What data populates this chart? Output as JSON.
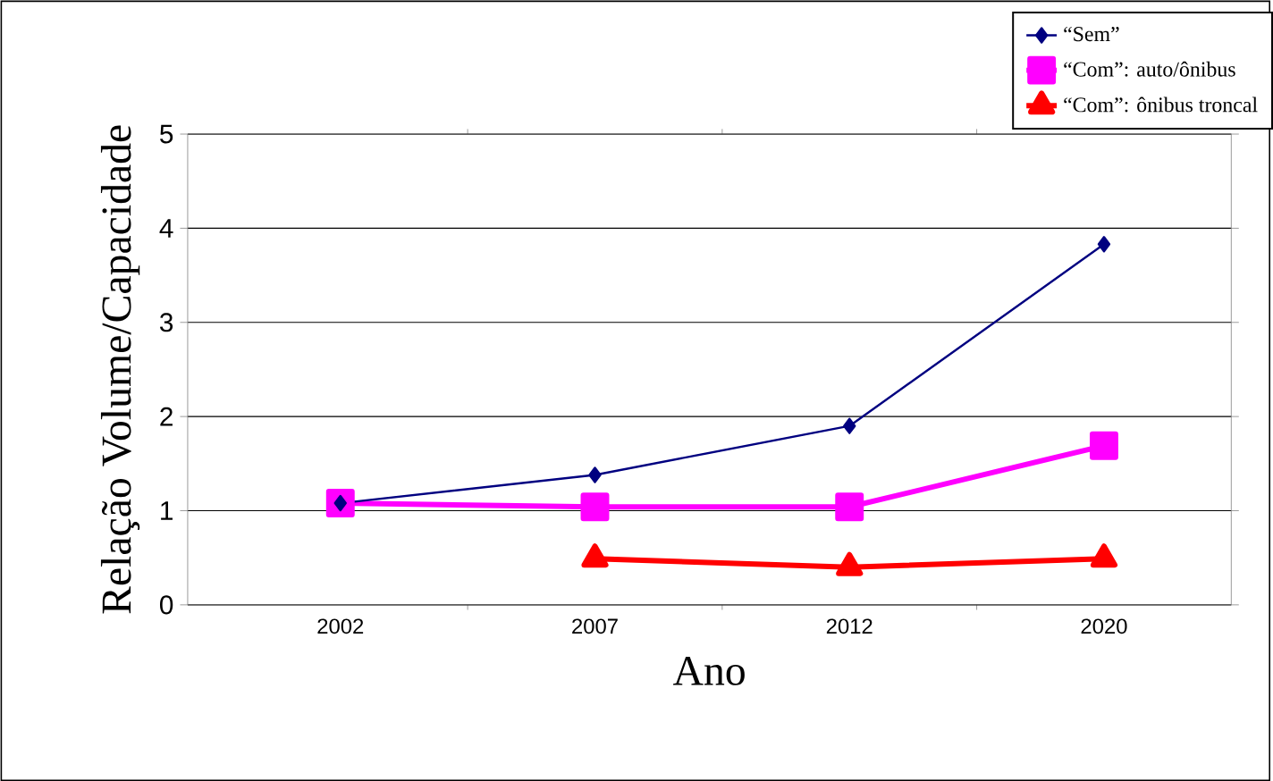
{
  "chart_data": {
    "type": "line",
    "xlabel": "Ano",
    "ylabel": "Relação Volume/Capacidade",
    "categories": [
      "2002",
      "2007",
      "2012",
      "2020"
    ],
    "series": [
      {
        "name": "“Sem”",
        "color": "#000080",
        "marker": "diamond",
        "values": [
          1.08,
          1.38,
          1.9,
          3.83
        ]
      },
      {
        "name": "“Com”: auto/ônibus",
        "color": "#ff00ff",
        "marker": "square",
        "values": [
          1.08,
          1.04,
          1.04,
          1.69
        ]
      },
      {
        "name": "“Com”: ônibus troncal",
        "color": "#ff0000",
        "marker": "triangle",
        "values": [
          null,
          0.49,
          0.4,
          0.49
        ]
      }
    ],
    "ylim": [
      0,
      5
    ],
    "yticks": [
      0,
      1,
      2,
      3,
      4,
      5
    ],
    "grid": "y",
    "legend": "top right",
    "line_style": "solid"
  }
}
